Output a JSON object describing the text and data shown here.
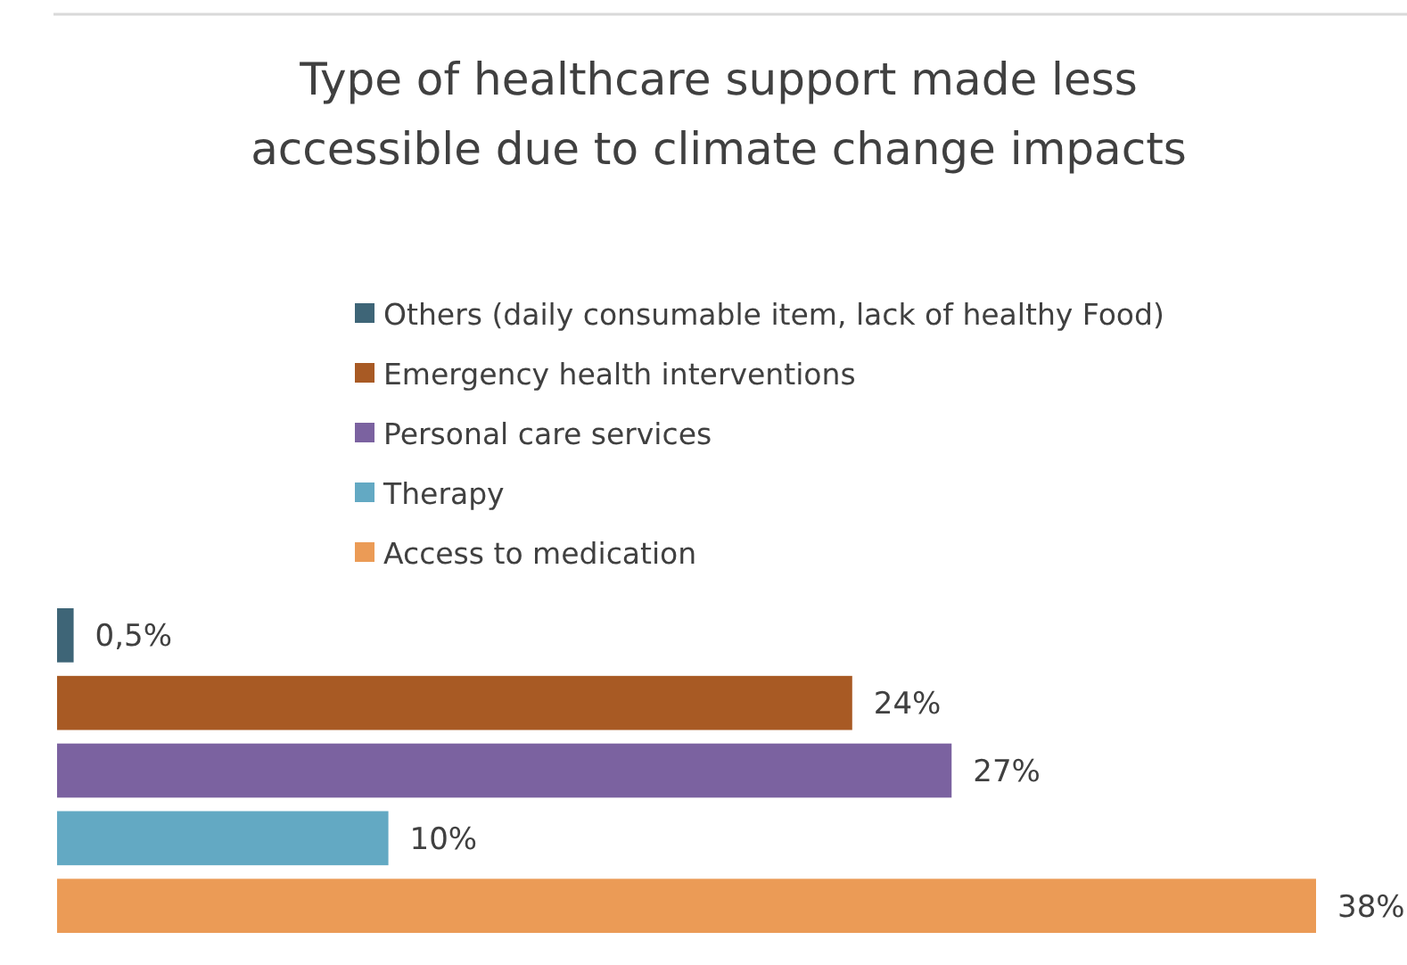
{
  "chart_data": {
    "type": "bar",
    "orientation": "horizontal",
    "title": "Type of healthcare support made less accessible due to climate change impacts",
    "categories": [
      null,
      null,
      null,
      null,
      null
    ],
    "legend": "top",
    "stacked": true,
    "series": [
      {
        "name": "Others (daily consumable item, lack of healthy Food)",
        "color": "#3e6577",
        "values": [
          0.5,
          null,
          null,
          null,
          null
        ],
        "value_labels": [
          "0,5%",
          null,
          null,
          null,
          null
        ]
      },
      {
        "name": "Emergency health interventions",
        "color": "#a85a24",
        "values": [
          null,
          24,
          null,
          null,
          null
        ],
        "value_labels": [
          null,
          "24%",
          null,
          null,
          null
        ]
      },
      {
        "name": "Personal care services",
        "color": "#7b62a0",
        "values": [
          null,
          null,
          27,
          null,
          null
        ],
        "value_labels": [
          null,
          null,
          "27%",
          null,
          null
        ]
      },
      {
        "name": "Therapy",
        "color": "#63a9c3",
        "values": [
          null,
          null,
          null,
          10,
          null
        ],
        "value_labels": [
          null,
          null,
          null,
          "10%",
          null
        ]
      },
      {
        "name": "Access to medication",
        "color": "#eb9b56",
        "values": [
          null,
          null,
          null,
          null,
          38
        ],
        "value_labels": [
          null,
          null,
          null,
          null,
          "38%"
        ]
      }
    ]
  }
}
